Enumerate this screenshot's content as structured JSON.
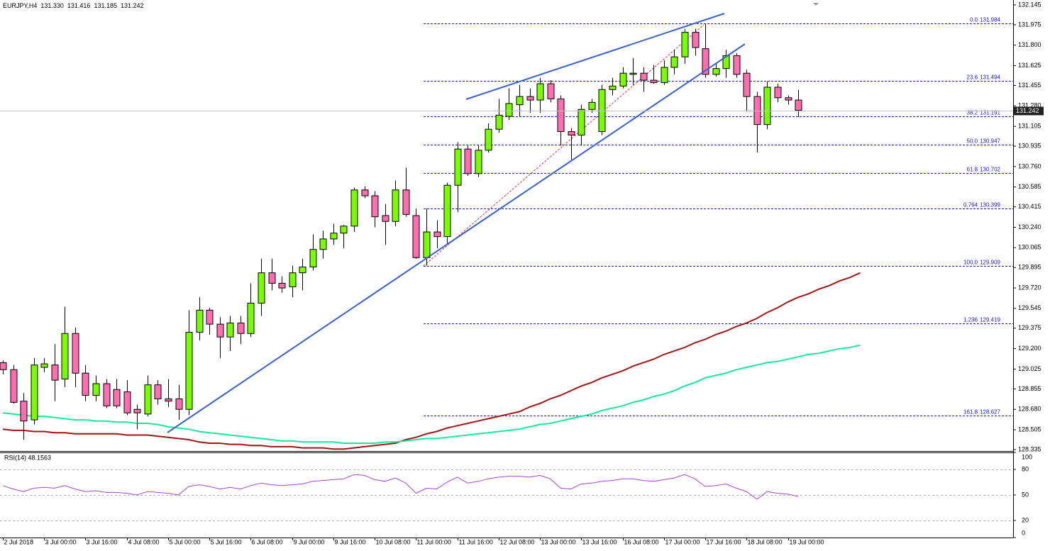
{
  "chart_data": [
    {
      "type": "candlestick",
      "title": "EURJPY,H4",
      "title_quote": [
        "131.330",
        "131.416",
        "131.185",
        "131.242"
      ],
      "categories": [
        "2 Jul 2018",
        null,
        null,
        null,
        "3 Jul 00:00",
        null,
        null,
        null,
        "3 Jul 16:00",
        null,
        null,
        null,
        "4 Jul 08:00",
        null,
        null,
        null,
        "5 Jul 00:00",
        null,
        null,
        null,
        "5 Jul 16:00",
        null,
        null,
        null,
        "6 Jul 08:00",
        null,
        null,
        null,
        "9 Jul 00:00",
        null,
        null,
        null,
        "9 Jul 16:00",
        null,
        null,
        null,
        "10 Jul 08:00",
        null,
        null,
        null,
        "11 Jul 00:00",
        null,
        null,
        null,
        "11 Jul 16:00",
        null,
        null,
        null,
        "12 Jul 08:00",
        null,
        null,
        null,
        "13 Jul 00:00",
        null,
        null,
        null,
        "13 Jul 16:00",
        null,
        null,
        null,
        "16 Jul 08:00",
        null,
        null,
        null,
        "17 Jul 00:00",
        null,
        null,
        null,
        "17 Jul 16:00",
        null,
        null,
        null,
        "18 Jul 08:00",
        null,
        null,
        null,
        "19 Jul 00:00",
        null,
        null,
        null,
        null,
        null,
        null,
        null
      ],
      "open": [
        129.08,
        129.02,
        128.75,
        128.59,
        129.04,
        129.06,
        128.94,
        129.33,
        128.99,
        128.8,
        128.9,
        128.85,
        128.83,
        128.68,
        128.64,
        128.89,
        128.77,
        128.77,
        128.68,
        129.34,
        129.53,
        129.41,
        129.3,
        129.42,
        129.33,
        129.59,
        129.85,
        129.76,
        129.73,
        129.85,
        129.9,
        130.05,
        130.14,
        130.19,
        130.25,
        130.56,
        130.51,
        130.34,
        130.29,
        130.56,
        130.34,
        129.98,
        130.2,
        130.16,
        130.6,
        130.91,
        130.7,
        130.9,
        131.08,
        131.19,
        131.29,
        131.36,
        131.33,
        131.47,
        131.34,
        131.06,
        131.03,
        131.25,
        131.06,
        131.42,
        131.45,
        131.55,
        131.56,
        131.5,
        131.48,
        131.61,
        131.7,
        131.91,
        131.77,
        131.55,
        131.6,
        131.71,
        131.56,
        131.36,
        131.12,
        131.44,
        131.35,
        131.33,
        null,
        null,
        null,
        null,
        null,
        null
      ],
      "high": [
        129.1,
        129.06,
        128.82,
        129.12,
        129.12,
        129.24,
        129.56,
        129.38,
        129.06,
        128.97,
        128.94,
        128.94,
        128.93,
        128.72,
        128.97,
        128.93,
        128.94,
        128.89,
        129.53,
        129.64,
        129.55,
        129.47,
        129.48,
        129.48,
        129.76,
        129.97,
        129.97,
        129.82,
        129.91,
        129.97,
        130.18,
        130.21,
        130.27,
        130.26,
        130.58,
        130.59,
        130.55,
        130.44,
        130.64,
        130.75,
        130.4,
        130.4,
        130.3,
        130.62,
        130.97,
        130.94,
        130.94,
        131.13,
        131.34,
        131.43,
        131.46,
        131.43,
        131.52,
        131.5,
        131.37,
        131.09,
        131.29,
        131.34,
        131.46,
        131.52,
        131.61,
        131.69,
        131.61,
        131.63,
        131.67,
        131.76,
        131.94,
        131.94,
        131.98,
        131.64,
        131.76,
        131.73,
        131.59,
        131.4,
        131.49,
        131.47,
        131.37,
        131.416,
        null,
        null,
        null,
        null,
        null,
        null
      ],
      "low": [
        128.98,
        128.73,
        128.42,
        128.55,
        129.0,
        128.75,
        128.87,
        128.87,
        128.75,
        128.75,
        128.69,
        128.69,
        128.63,
        128.51,
        128.62,
        128.72,
        128.7,
        128.59,
        128.63,
        129.27,
        129.32,
        129.12,
        129.18,
        129.24,
        129.3,
        129.48,
        129.7,
        129.68,
        129.64,
        129.7,
        129.87,
        129.97,
        130.09,
        130.06,
        130.2,
        130.49,
        130.24,
        130.09,
        130.25,
        130.33,
        129.97,
        129.91,
        130.06,
        130.09,
        130.37,
        130.68,
        130.67,
        130.88,
        131.05,
        131.16,
        131.19,
        131.22,
        131.22,
        131.31,
        130.94,
        130.82,
        130.94,
        131.22,
        131.03,
        131.37,
        131.43,
        131.46,
        131.4,
        131.47,
        131.46,
        131.55,
        131.64,
        131.71,
        131.52,
        131.53,
        131.52,
        131.52,
        131.23,
        130.88,
        131.08,
        131.31,
        131.29,
        131.185,
        null,
        null,
        null,
        null,
        null,
        null
      ],
      "close": [
        129.02,
        128.74,
        128.58,
        129.06,
        129.07,
        128.93,
        129.33,
        128.99,
        128.8,
        128.9,
        128.71,
        128.71,
        128.65,
        128.65,
        128.89,
        128.77,
        128.75,
        128.68,
        129.34,
        129.53,
        129.41,
        129.3,
        129.42,
        129.33,
        129.59,
        129.85,
        129.76,
        129.72,
        129.85,
        129.9,
        130.05,
        130.14,
        130.19,
        130.25,
        130.56,
        130.51,
        130.33,
        130.29,
        130.56,
        130.35,
        129.98,
        130.2,
        130.16,
        130.6,
        130.91,
        130.7,
        130.9,
        131.08,
        131.2,
        131.3,
        131.36,
        131.33,
        131.47,
        131.34,
        131.06,
        131.03,
        131.25,
        131.31,
        131.42,
        131.45,
        131.56,
        131.56,
        131.5,
        131.48,
        131.61,
        131.7,
        131.91,
        131.78,
        131.55,
        131.6,
        131.71,
        131.55,
        131.36,
        131.12,
        131.44,
        131.35,
        131.33,
        131.242,
        null,
        null,
        null,
        null,
        null,
        null
      ],
      "up_color": "#7cfc00",
      "down_color": "#ff6fb0",
      "series": [
        {
          "color": "#a31515",
          "values": [
            128.51,
            128.5,
            128.5,
            128.49,
            128.49,
            128.48,
            128.48,
            128.47,
            128.47,
            128.47,
            128.47,
            128.47,
            128.46,
            128.46,
            128.46,
            128.45,
            128.44,
            128.43,
            128.42,
            128.4,
            128.39,
            128.39,
            128.38,
            128.38,
            128.37,
            128.37,
            128.36,
            128.36,
            128.36,
            128.35,
            128.35,
            128.35,
            128.34,
            128.34,
            128.35,
            128.36,
            128.37,
            128.38,
            128.39,
            128.42,
            128.44,
            128.47,
            128.49,
            128.52,
            128.54,
            128.56,
            128.58,
            128.6,
            128.62,
            128.64,
            128.66,
            128.7,
            128.73,
            128.77,
            128.8,
            128.84,
            128.88,
            128.91,
            128.95,
            128.98,
            129.01,
            129.05,
            129.08,
            129.11,
            129.15,
            129.18,
            129.21,
            129.25,
            129.28,
            129.32,
            129.35,
            129.39,
            129.42,
            129.46,
            129.51,
            129.55,
            129.6,
            129.64,
            129.67,
            129.71,
            129.74,
            129.78,
            129.81,
            129.85
          ]
        },
        {
          "color": "#19e89a",
          "values": [
            128.65,
            128.64,
            128.63,
            128.62,
            128.62,
            128.61,
            128.6,
            128.59,
            128.59,
            128.58,
            128.58,
            128.57,
            128.57,
            128.56,
            128.56,
            128.55,
            128.53,
            128.52,
            128.51,
            128.49,
            128.48,
            128.47,
            128.46,
            128.45,
            128.44,
            128.43,
            128.42,
            128.41,
            128.41,
            128.4,
            128.4,
            128.4,
            128.4,
            128.39,
            128.39,
            128.39,
            128.39,
            128.4,
            128.4,
            128.41,
            128.42,
            128.43,
            128.43,
            128.44,
            128.45,
            128.46,
            128.47,
            128.48,
            128.49,
            128.5,
            128.51,
            128.53,
            128.55,
            128.56,
            128.58,
            128.6,
            128.62,
            128.64,
            128.67,
            128.69,
            128.71,
            128.74,
            128.76,
            128.79,
            128.81,
            128.84,
            128.88,
            128.91,
            128.95,
            128.97,
            128.99,
            129.02,
            129.04,
            129.06,
            129.08,
            129.09,
            129.11,
            129.13,
            129.15,
            129.16,
            129.18,
            129.2,
            129.21,
            129.23
          ]
        }
      ],
      "fib_color": "#1a1ac8",
      "fib_levels": [
        {
          "label": "0.0",
          "value": 131.984
        },
        {
          "label": "23.6",
          "value": 131.494
        },
        {
          "label": "38.2",
          "value": 131.191
        },
        {
          "label": "50.0",
          "value": 130.947
        },
        {
          "label": "61.8",
          "value": 130.702
        },
        {
          "label": "0.764",
          "value": 130.399
        },
        {
          "label": "100.0",
          "value": 129.909
        },
        {
          "label": "1.236",
          "value": 129.419
        },
        {
          "label": "161.8",
          "value": 128.627
        }
      ],
      "current_price": 131.242,
      "ylim": [
        128.323,
        132.175
      ],
      "yticks": [
        132.145,
        131.975,
        {
          "value": 131.8,
          "label": "131.800"
        },
        131.625,
        131.455,
        {
          "value": 131.28,
          "label": "131.280"
        },
        131.105,
        130.935,
        {
          "value": 130.76,
          "label": "130.760"
        },
        130.585,
        130.415,
        {
          "value": 130.24,
          "label": "130.240"
        },
        130.065,
        129.895,
        {
          "value": 129.72,
          "label": "129.720"
        },
        129.545,
        129.375,
        {
          "value": 129.2,
          "label": "129.200"
        },
        129.025,
        128.855,
        {
          "value": 128.68,
          "label": "128.680"
        },
        128.505,
        128.335
      ],
      "grid": false
    },
    {
      "type": "line",
      "title": "RSI(14) 48.1563",
      "color": "#a646d6",
      "values": [
        61,
        57,
        54,
        58,
        59,
        58,
        61,
        57,
        54,
        55,
        53,
        53,
        52,
        50,
        54,
        53,
        52,
        50,
        60,
        62,
        60,
        57,
        59,
        57,
        61,
        64,
        62,
        61,
        62,
        63,
        66,
        67,
        68,
        69,
        74,
        73,
        68,
        66,
        70,
        64,
        52,
        58,
        57,
        65,
        71,
        64,
        66,
        69,
        71,
        72,
        72,
        71,
        73,
        69,
        58,
        57,
        63,
        64,
        66,
        67,
        69,
        69,
        67,
        66,
        68,
        70,
        74,
        69,
        60,
        61,
        63,
        58,
        54,
        45,
        54,
        52,
        51,
        48.1563,
        null,
        null,
        null,
        null,
        null,
        null
      ],
      "ylim": [
        0,
        100
      ],
      "yticks": [
        0,
        20,
        50,
        80,
        100
      ],
      "levels": [
        20,
        50,
        80
      ],
      "grid": true
    }
  ]
}
